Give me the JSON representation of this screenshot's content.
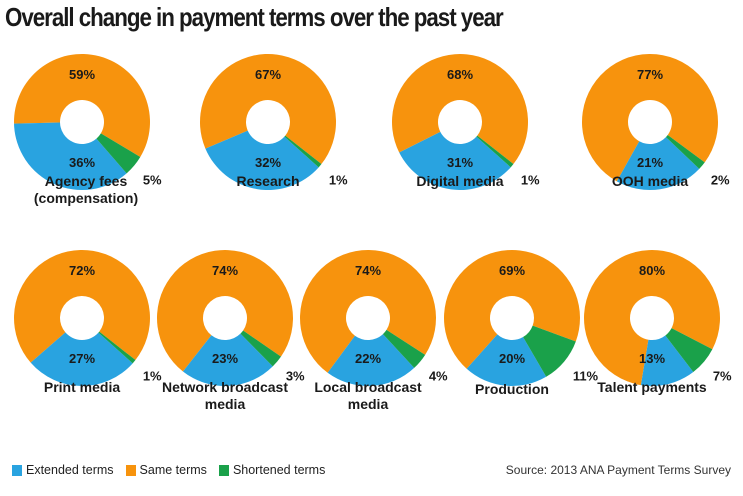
{
  "title": "Overall change in payment terms over the past year",
  "source": "Source: 2013 ANA Payment Terms Survey",
  "colors": {
    "extended": "#29a3e0",
    "same": "#f7930d",
    "shortened": "#1aa14a"
  },
  "legend": [
    {
      "key": "extended",
      "label": "Extended terms"
    },
    {
      "key": "same",
      "label": "Same terms"
    },
    {
      "key": "shortened",
      "label": "Shortened terms"
    }
  ],
  "chart_data": {
    "type": "pie",
    "subtype": "donut",
    "title": "Overall change in payment terms over the past year",
    "series_names": [
      "Extended terms",
      "Same terms",
      "Shortened terms"
    ],
    "charts": [
      {
        "name": [
          "Agency fees",
          "(compensation)"
        ],
        "extended": 36,
        "same": 59,
        "shortened": 5
      },
      {
        "name": [
          "Research"
        ],
        "extended": 32,
        "same": 67,
        "shortened": 1
      },
      {
        "name": [
          "Digital media"
        ],
        "extended": 31,
        "same": 68,
        "shortened": 1
      },
      {
        "name": [
          "OOH media"
        ],
        "extended": 21,
        "same": 77,
        "shortened": 2
      },
      {
        "name": [
          "Print media"
        ],
        "extended": 27,
        "same": 72,
        "shortened": 1
      },
      {
        "name": [
          "Network broadcast",
          "media"
        ],
        "extended": 23,
        "same": 74,
        "shortened": 3
      },
      {
        "name": [
          "Local broadcast",
          "media"
        ],
        "extended": 22,
        "same": 74,
        "shortened": 4
      },
      {
        "name": [
          "Production"
        ],
        "extended": 20,
        "same": 69,
        "shortened": 11
      },
      {
        "name": [
          "Talent payments"
        ],
        "extended": 13,
        "same": 80,
        "shortened": 7
      }
    ]
  }
}
